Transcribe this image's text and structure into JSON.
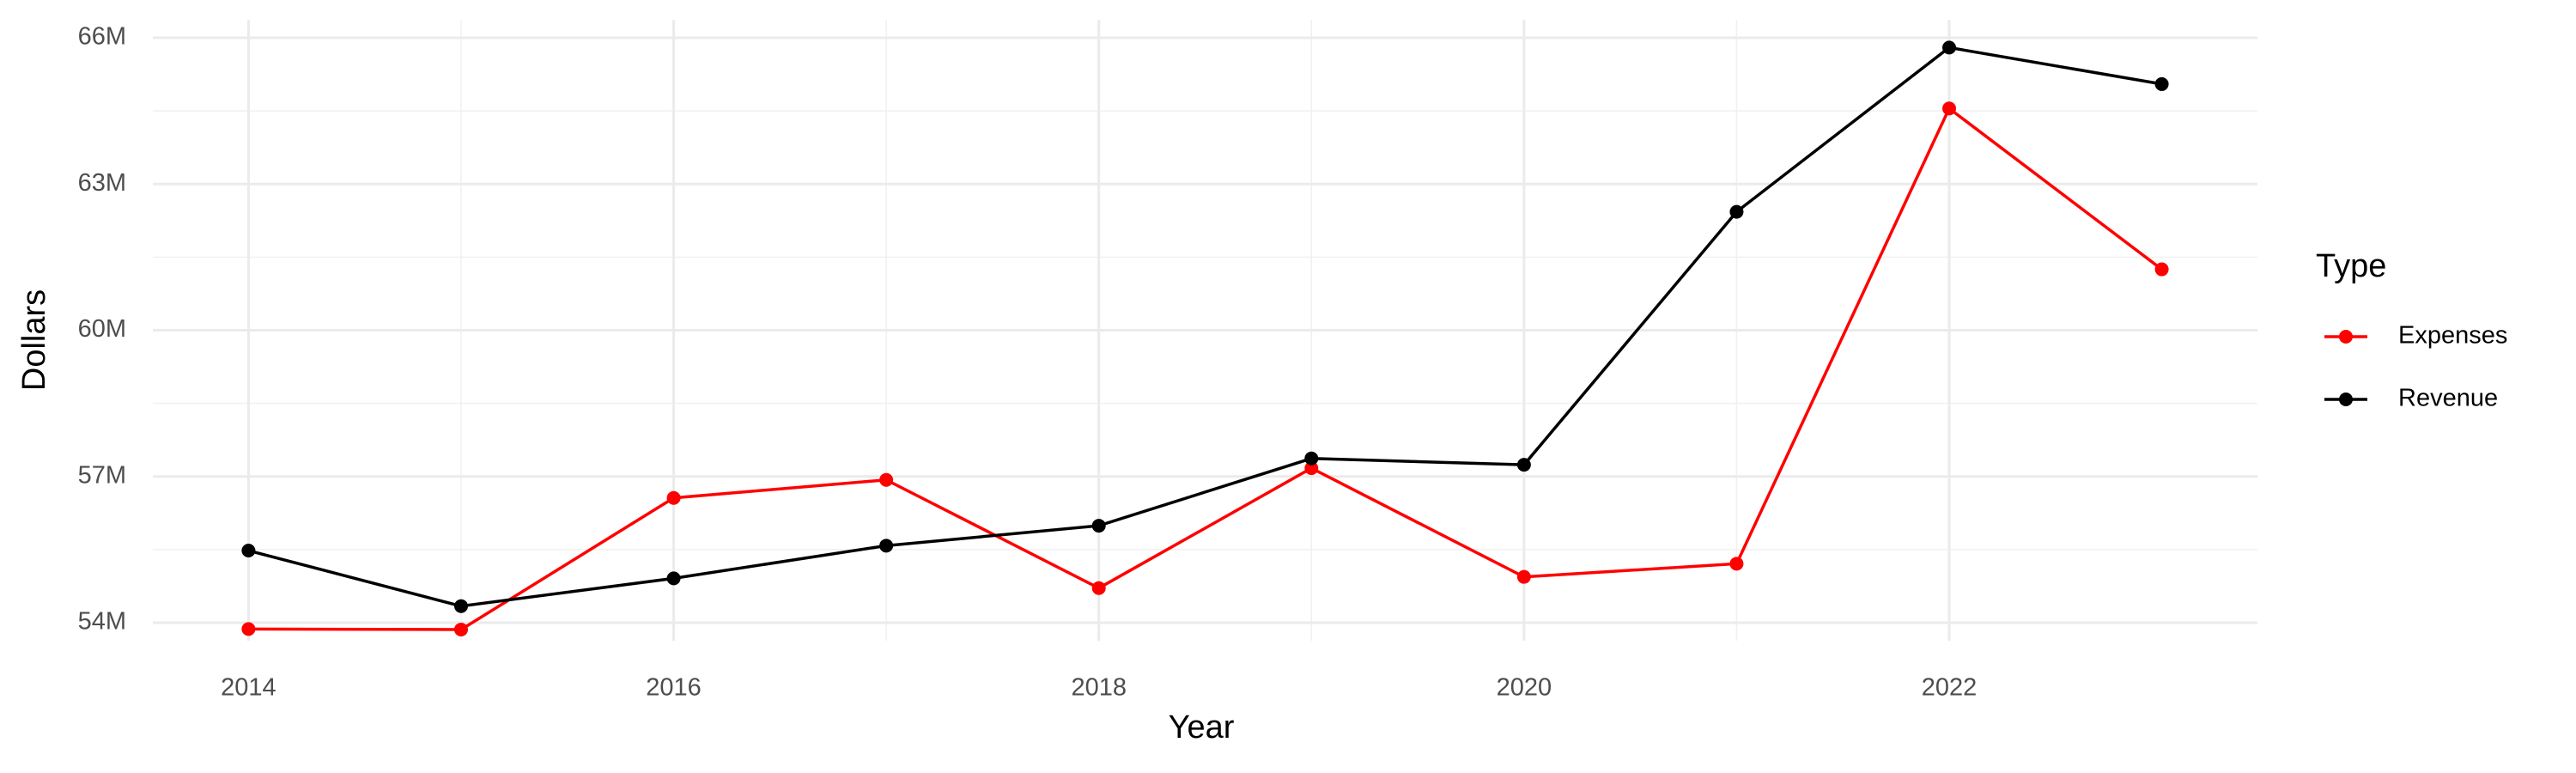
{
  "chart_data": {
    "type": "line",
    "x_label": "Year",
    "y_label": "Dollars",
    "legend_title": "Type",
    "x": [
      2014,
      2015,
      2016,
      2017,
      2018,
      2019,
      2020,
      2021,
      2022,
      2023
    ],
    "series": [
      {
        "name": "Expenses",
        "color": "#ff0000",
        "values": [
          53870000,
          53860000,
          56560000,
          56930000,
          54710000,
          57170000,
          54940000,
          55210000,
          64550000,
          61250000
        ]
      },
      {
        "name": "Revenue",
        "color": "#000000",
        "values": [
          55480000,
          54340000,
          54910000,
          55580000,
          55990000,
          57370000,
          57240000,
          62430000,
          65800000,
          65050000
        ]
      }
    ],
    "xlim": [
      2013.55,
      2023.45
    ],
    "xticks": [
      2014,
      2016,
      2018,
      2020,
      2022
    ],
    "ylim": [
      53630000,
      66370000
    ],
    "yticks": [
      {
        "value": 54000000,
        "label": "54M"
      },
      {
        "value": 57000000,
        "label": "57M"
      },
      {
        "value": 60000000,
        "label": "60M"
      },
      {
        "value": 63000000,
        "label": "63M"
      },
      {
        "value": 66000000,
        "label": "66M"
      }
    ],
    "grid": true,
    "legend_position": "right"
  }
}
